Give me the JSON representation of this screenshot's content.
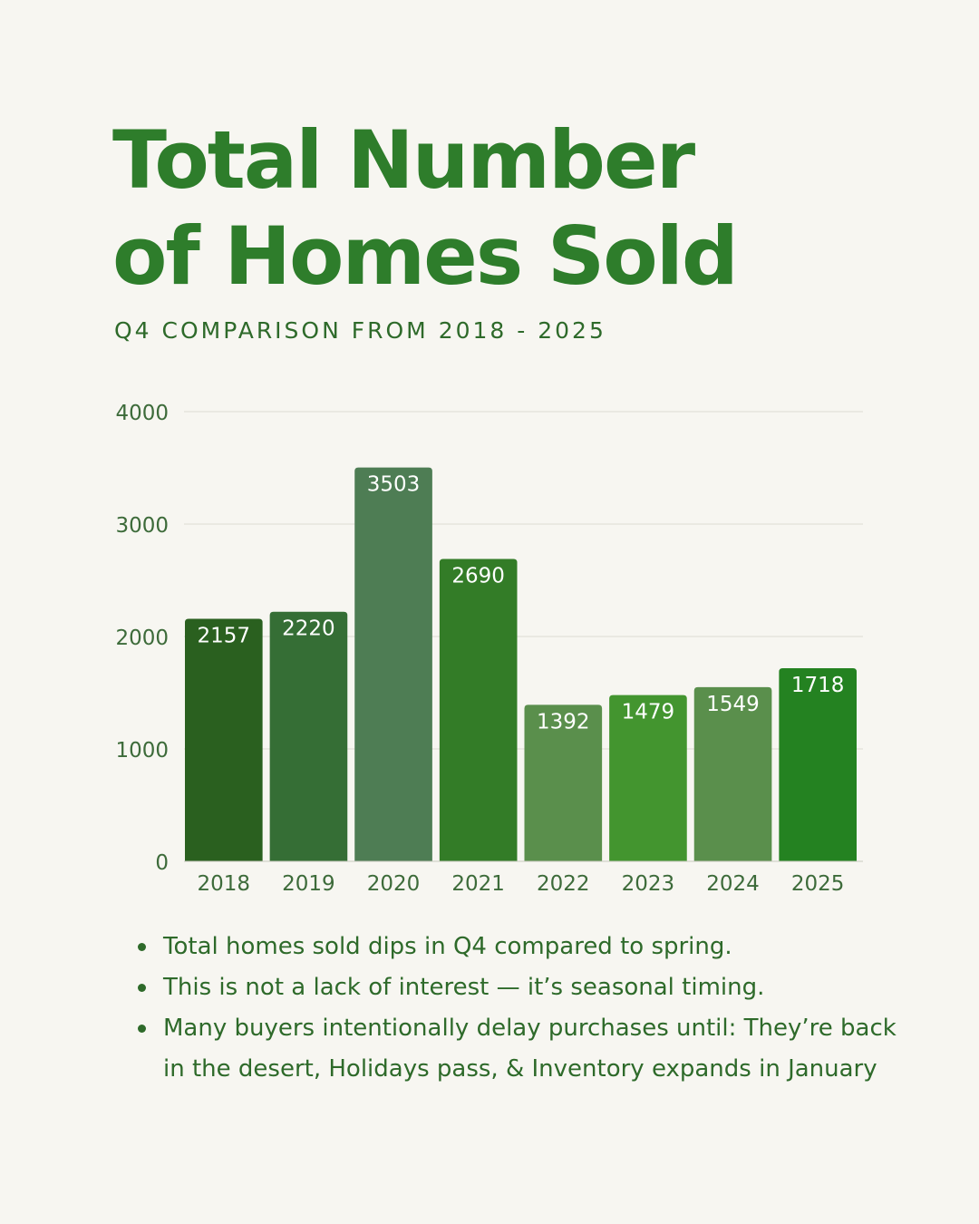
{
  "header": {
    "title": "Total Number\nof Homes Sold",
    "subtitle": "Q4 COMPARISON FROM 2018 - 2025"
  },
  "chart_data": {
    "type": "bar",
    "categories": [
      "2018",
      "2019",
      "2020",
      "2021",
      "2022",
      "2023",
      "2024",
      "2025"
    ],
    "values": [
      2157,
      2220,
      3503,
      2690,
      1392,
      1479,
      1549,
      1718
    ],
    "data_labels": [
      "2157",
      "2220",
      "3503",
      "2690",
      "1392",
      "1479",
      "1549",
      "1718"
    ],
    "yticks": [
      "0",
      "1000",
      "2000",
      "3000",
      "4000"
    ],
    "ylim": [
      0,
      4000
    ],
    "grid": true,
    "colors": [
      "#2a601f",
      "#356e35",
      "#4e7d54",
      "#337c27",
      "#5a8f4c",
      "#43952f",
      "#5a8f4c",
      "#248221"
    ]
  },
  "notes": {
    "bullets": [
      "Total homes sold dips in Q4 compared to spring.",
      "This is not a lack of interest — it’s seasonal timing.",
      "Many buyers intentionally delay purchases until: They’re back in the desert, Holidays pass, & Inventory expands in January"
    ]
  }
}
